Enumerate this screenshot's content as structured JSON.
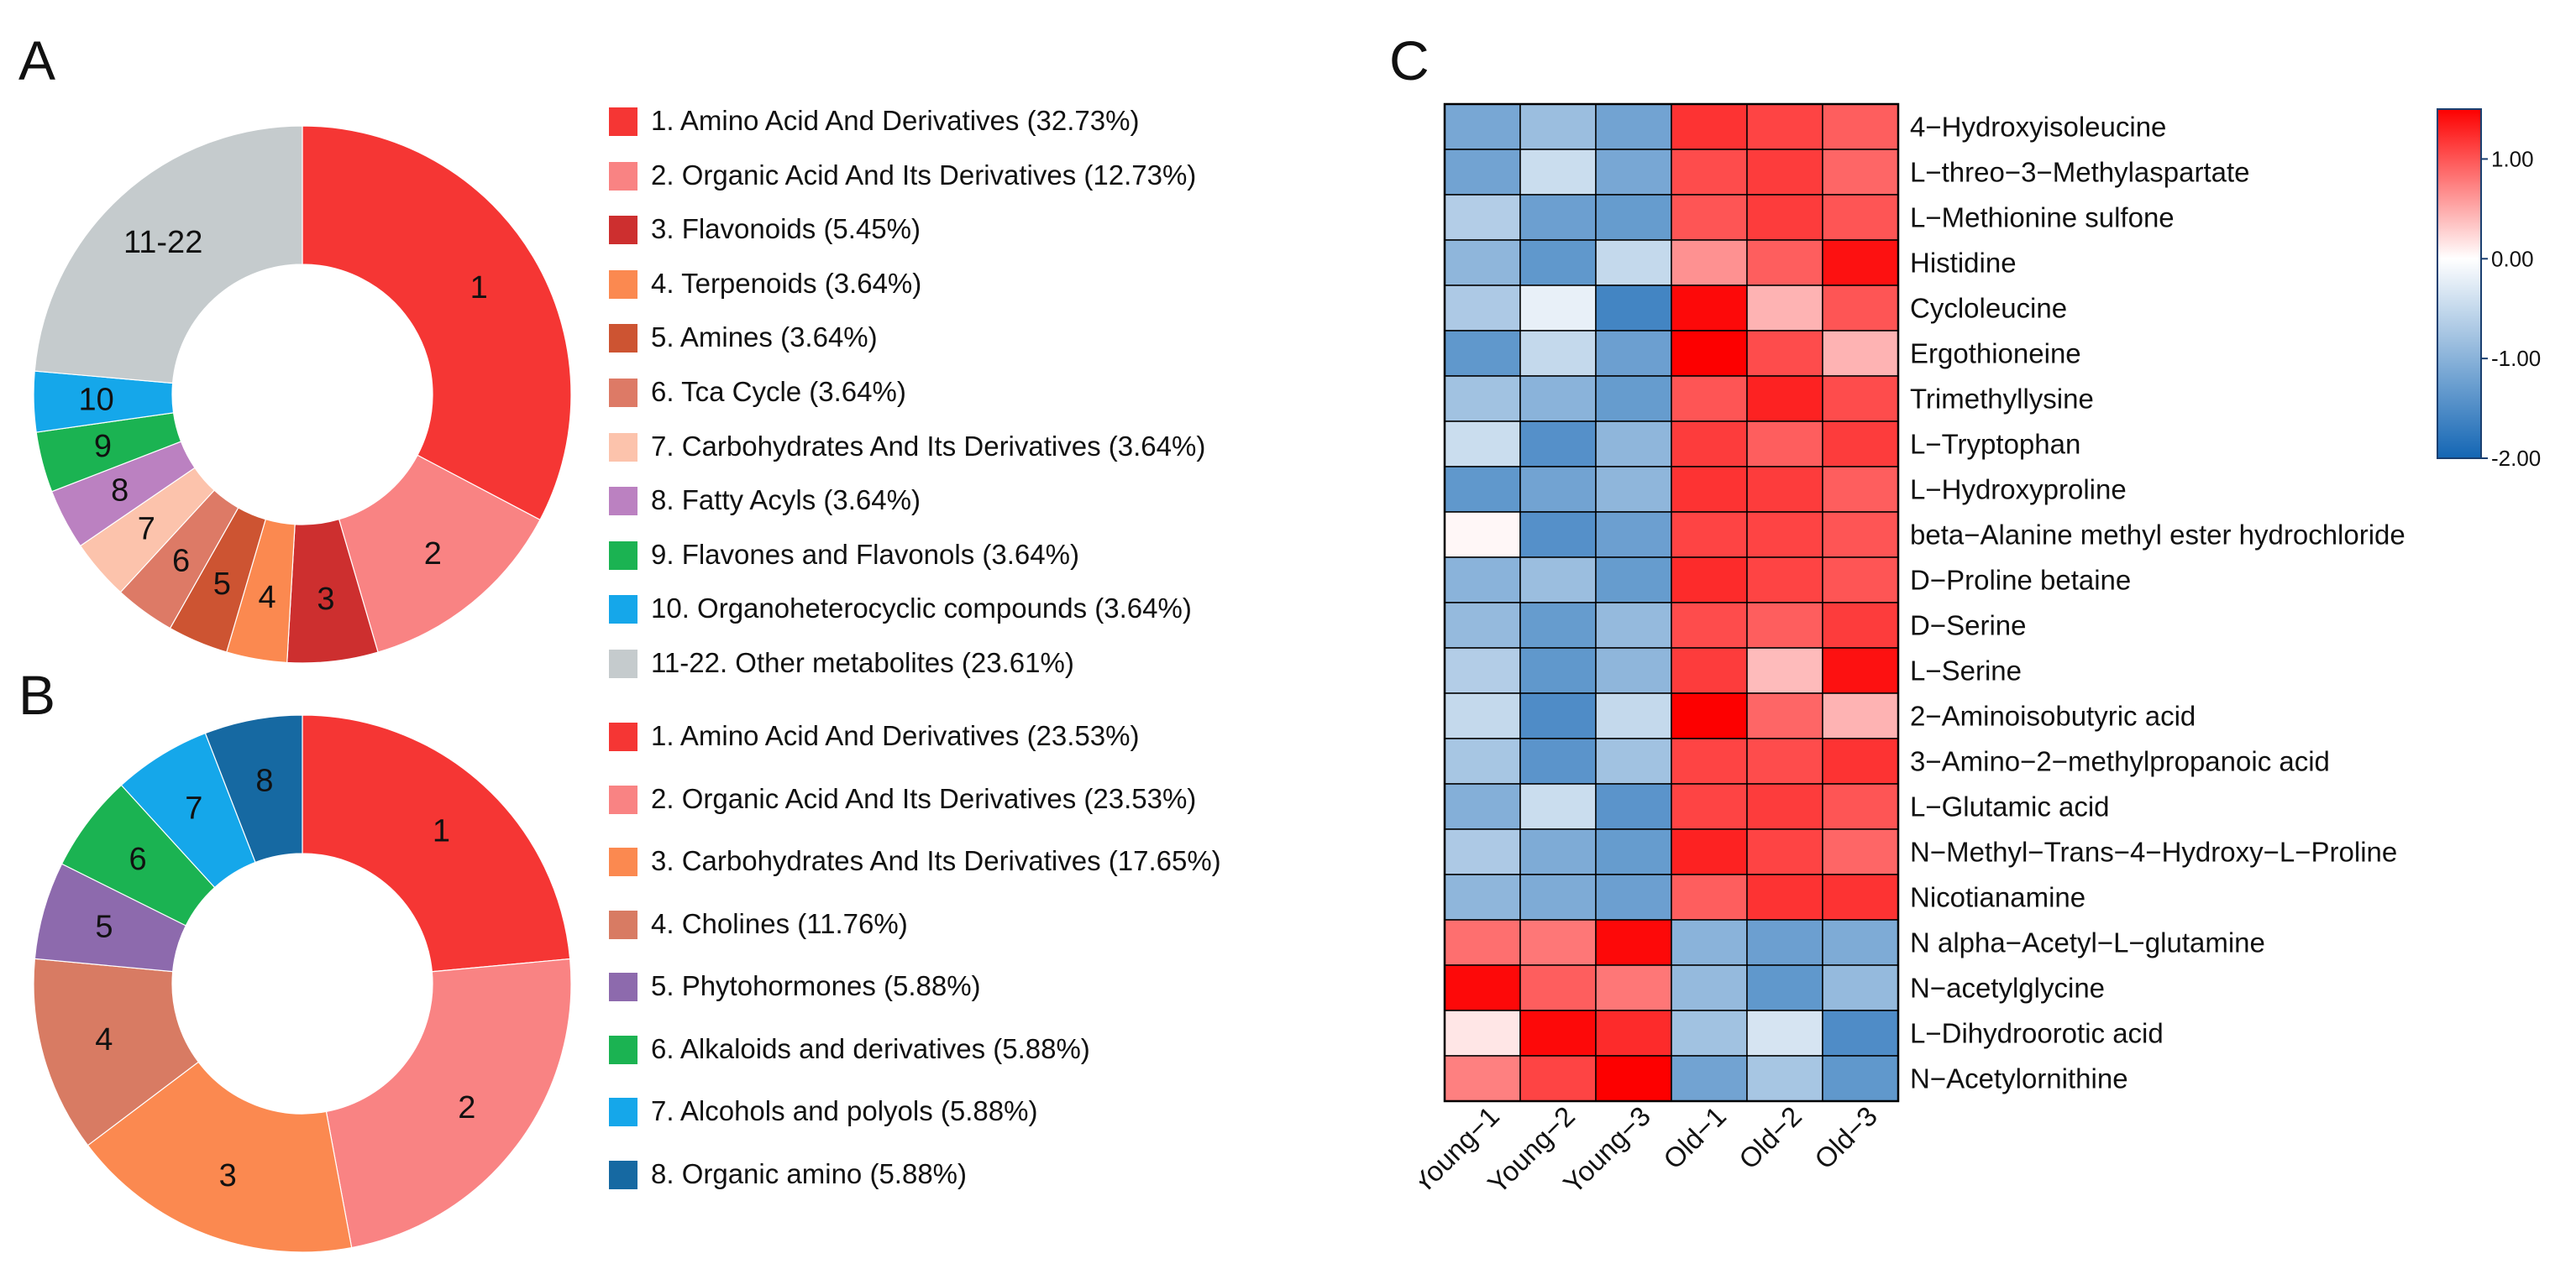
{
  "panel_labels": {
    "a": "A",
    "b": "B",
    "c": "C"
  },
  "chart_data": [
    {
      "type": "pie",
      "panel": "A",
      "donut": true,
      "start": "top, clockwise",
      "slice_labels": [
        "1",
        "2",
        "3",
        "4",
        "5",
        "6",
        "7",
        "8",
        "9",
        "10",
        "11-22"
      ],
      "values": [
        32.73,
        12.73,
        5.45,
        3.64,
        3.64,
        3.64,
        3.64,
        3.64,
        3.64,
        3.64,
        23.61
      ],
      "colors": [
        "#f53634",
        "#f98383",
        "#cd2f2f",
        "#fb8950",
        "#cd5432",
        "#dd7a66",
        "#fcc3ac",
        "#bb81c1",
        "#1bb352",
        "#15a7ea",
        "#c5cbcd"
      ],
      "legend": [
        "1. Amino Acid And Derivatives (32.73%)",
        "2. Organic Acid And Its Derivatives (12.73%)",
        "3. Flavonoids (5.45%)",
        "4. Terpenoids (3.64%)",
        "5. Amines (3.64%)",
        "6. Tca Cycle (3.64%)",
        "7. Carbohydrates And Its Derivatives (3.64%)",
        "8. Fatty Acyls (3.64%)",
        "9. Flavones and Flavonols (3.64%)",
        "10. Organoheterocyclic compounds (3.64%)",
        "11-22. Other metabolites (23.61%)"
      ]
    },
    {
      "type": "pie",
      "panel": "B",
      "donut": true,
      "start": "top, clockwise",
      "slice_labels": [
        "1",
        "2",
        "3",
        "4",
        "5",
        "6",
        "7",
        "8"
      ],
      "values": [
        23.53,
        23.53,
        17.65,
        11.76,
        5.88,
        5.88,
        5.88,
        5.88
      ],
      "colors": [
        "#f53634",
        "#f98383",
        "#fb8950",
        "#d87b63",
        "#8d6aad",
        "#1bb352",
        "#15a7ea",
        "#1669a2"
      ],
      "legend": [
        "1. Amino Acid And Derivatives (23.53%)",
        "2. Organic Acid And Its Derivatives (23.53%)",
        "3. Carbohydrates And Its Derivatives (17.65%)",
        "4. Cholines (11.76%)",
        "5. Phytohormones (5.88%)",
        "6. Alkaloids and derivatives (5.88%)",
        "7. Alcohols and polyols (5.88%)",
        "8. Organic amino (5.88%)"
      ]
    },
    {
      "type": "heatmap",
      "panel": "C",
      "columns": [
        "Young−1",
        "Young−2",
        "Young−3",
        "Old−1",
        "Old−2",
        "Old−3"
      ],
      "rows": [
        "4−Hydroxyisoleucine",
        "L−threo−3−Methylaspartate",
        "L−Methionine sulfone",
        "Histidine",
        "Cycloleucine",
        "Ergothioneine",
        "Trimethyllysine",
        "L−Tryptophan",
        "L−Hydroxyproline",
        "beta−Alanine methyl ester hydrochloride",
        "D−Proline betaine",
        "D−Serine",
        "L−Serine",
        "2−Aminoisobutyric acid",
        "3−Amino−2−methylpropanoic acid",
        "L−Glutamic acid",
        "N−Methyl−Trans−4−Hydroxy−L−Proline",
        "Nicotianamine",
        "N alpha−Acetyl−L−glutamine",
        "N−acetylglycine",
        "L−Dihydroorotic acid",
        "N−Acetylornithine"
      ],
      "values": [
        [
          -1.15,
          -0.85,
          -1.2,
          1.2,
          1.1,
          0.95
        ],
        [
          -1.2,
          -0.45,
          -1.15,
          1.05,
          1.15,
          0.9
        ],
        [
          -0.65,
          -1.25,
          -1.3,
          1.0,
          1.15,
          1.0
        ],
        [
          -0.95,
          -1.35,
          -0.5,
          0.65,
          0.95,
          1.4
        ],
        [
          -0.7,
          -0.2,
          -1.6,
          1.45,
          0.45,
          1.0
        ],
        [
          -1.35,
          -0.5,
          -1.25,
          1.5,
          1.05,
          0.45
        ],
        [
          -0.8,
          -1.0,
          -1.3,
          1.0,
          1.3,
          1.05
        ],
        [
          -0.45,
          -1.45,
          -0.95,
          1.15,
          0.95,
          1.15
        ],
        [
          -1.35,
          -1.2,
          -0.95,
          1.2,
          1.15,
          0.95
        ],
        [
          0.05,
          -1.45,
          -1.25,
          1.1,
          1.1,
          1.0
        ],
        [
          -1.0,
          -0.85,
          -1.3,
          1.25,
          1.1,
          1.0
        ],
        [
          -0.9,
          -1.3,
          -0.9,
          1.05,
          0.95,
          1.15
        ],
        [
          -0.65,
          -1.35,
          -0.95,
          1.15,
          0.4,
          1.4
        ],
        [
          -0.5,
          -1.5,
          -0.5,
          1.55,
          0.9,
          0.45
        ],
        [
          -0.75,
          -1.4,
          -0.8,
          1.1,
          1.05,
          1.2
        ],
        [
          -1.05,
          -0.45,
          -1.4,
          1.1,
          1.15,
          1.0
        ],
        [
          -0.7,
          -1.1,
          -1.3,
          1.3,
          1.1,
          0.9
        ],
        [
          -0.95,
          -1.1,
          -1.25,
          0.95,
          1.2,
          1.2
        ],
        [
          0.85,
          0.8,
          1.45,
          -1.0,
          -1.25,
          -1.1
        ],
        [
          1.45,
          0.95,
          0.8,
          -0.9,
          -1.35,
          -0.9
        ],
        [
          0.15,
          1.45,
          1.25,
          -0.8,
          -0.35,
          -1.5
        ],
        [
          0.75,
          1.1,
          1.5,
          -1.2,
          -0.75,
          -1.35
        ]
      ],
      "color_scale": {
        "min": -2.0,
        "mid": 0.0,
        "max": 1.5,
        "low_color": "#1466b4",
        "mid_color": "#ffffff",
        "high_color": "#fd0000"
      },
      "colorbar_ticks": [
        "1.00",
        "0.00",
        "-1.00",
        "-2.00"
      ],
      "colorbar_tick_values": [
        1.0,
        0.0,
        -1.0,
        -2.0
      ]
    }
  ]
}
